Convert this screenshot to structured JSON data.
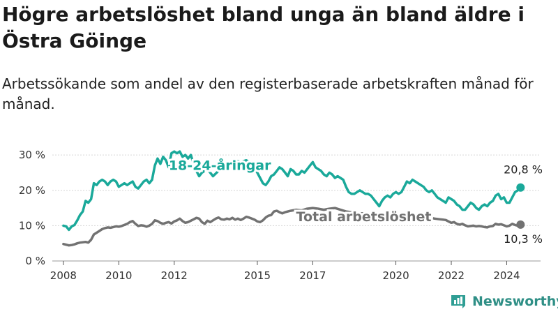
{
  "title": "Högre arbetslöshet bland unga än bland äldre i Östra Göinge",
  "subtitle": "Arbetssökande som andel av den registerbaserade arbetskraften månad för månad.",
  "brand": {
    "name": "Newsworthy",
    "icon": "bar-chart-logo-icon",
    "color": "#2f9e94"
  },
  "chart_data": {
    "type": "line",
    "ylim": [
      0,
      32
    ],
    "xlim": [
      2007.6,
      2025.6
    ],
    "yticks": [
      0,
      10,
      20,
      30
    ],
    "ytick_labels": [
      "0 %",
      "10 %",
      "20 %",
      "30 %"
    ],
    "xticks": [
      2008,
      2010,
      2012,
      2015,
      2017,
      2020,
      2022,
      2024
    ],
    "xtick_labels": [
      "2008",
      "2010",
      "2012",
      "2015",
      "2017",
      "2020",
      "2022",
      "2024"
    ],
    "grid": true,
    "series": [
      {
        "name": "18-24-åringar",
        "color": "#1aa99a",
        "end_label": "20,8 %",
        "points": [
          [
            2008.0,
            10.0
          ],
          [
            2008.1,
            9.8
          ],
          [
            2008.2,
            8.8
          ],
          [
            2008.3,
            9.8
          ],
          [
            2008.4,
            10.2
          ],
          [
            2008.5,
            11.5
          ],
          [
            2008.6,
            13.0
          ],
          [
            2008.7,
            14.0
          ],
          [
            2008.8,
            17.0
          ],
          [
            2008.9,
            16.5
          ],
          [
            2009.0,
            17.5
          ],
          [
            2009.1,
            22.0
          ],
          [
            2009.2,
            21.5
          ],
          [
            2009.3,
            22.5
          ],
          [
            2009.4,
            23.0
          ],
          [
            2009.5,
            22.5
          ],
          [
            2009.6,
            21.5
          ],
          [
            2009.7,
            22.5
          ],
          [
            2009.8,
            23.0
          ],
          [
            2009.9,
            22.5
          ],
          [
            2010.0,
            21.0
          ],
          [
            2010.1,
            21.5
          ],
          [
            2010.2,
            22.0
          ],
          [
            2010.3,
            21.5
          ],
          [
            2010.4,
            22.0
          ],
          [
            2010.5,
            22.5
          ],
          [
            2010.6,
            21.0
          ],
          [
            2010.7,
            20.5
          ],
          [
            2010.8,
            21.5
          ],
          [
            2010.9,
            22.5
          ],
          [
            2011.0,
            23.0
          ],
          [
            2011.1,
            22.0
          ],
          [
            2011.2,
            23.0
          ],
          [
            2011.3,
            27.0
          ],
          [
            2011.4,
            29.0
          ],
          [
            2011.5,
            27.5
          ],
          [
            2011.6,
            29.5
          ],
          [
            2011.7,
            28.5
          ],
          [
            2011.8,
            26.5
          ],
          [
            2011.9,
            30.5
          ],
          [
            2012.0,
            31.0
          ],
          [
            2012.1,
            30.5
          ],
          [
            2012.2,
            31.0
          ],
          [
            2012.3,
            29.5
          ],
          [
            2012.4,
            30.0
          ],
          [
            2012.5,
            29.0
          ],
          [
            2012.6,
            30.0
          ],
          [
            2012.7,
            27.5
          ],
          [
            2012.8,
            25.5
          ],
          [
            2012.9,
            24.0
          ],
          [
            2013.0,
            25.0
          ],
          [
            2013.2,
            26.0
          ],
          [
            2013.4,
            24.0
          ],
          [
            2013.6,
            25.5
          ],
          [
            2013.8,
            26.5
          ],
          [
            2014.0,
            27.0
          ],
          [
            2014.2,
            28.5
          ],
          [
            2014.4,
            28.0
          ],
          [
            2014.6,
            28.5
          ],
          [
            2014.8,
            27.5
          ],
          [
            2015.0,
            25.0
          ],
          [
            2015.1,
            23.5
          ],
          [
            2015.2,
            22.0
          ],
          [
            2015.3,
            21.5
          ],
          [
            2015.4,
            22.5
          ],
          [
            2015.5,
            24.0
          ],
          [
            2015.6,
            24.5
          ],
          [
            2015.7,
            25.5
          ],
          [
            2015.8,
            26.5
          ],
          [
            2015.9,
            26.0
          ],
          [
            2016.0,
            25.0
          ],
          [
            2016.1,
            24.0
          ],
          [
            2016.2,
            26.0
          ],
          [
            2016.3,
            25.5
          ],
          [
            2016.4,
            24.5
          ],
          [
            2016.5,
            24.5
          ],
          [
            2016.6,
            25.5
          ],
          [
            2016.7,
            25.0
          ],
          [
            2016.8,
            26.0
          ],
          [
            2016.9,
            27.0
          ],
          [
            2017.0,
            28.0
          ],
          [
            2017.1,
            26.5
          ],
          [
            2017.2,
            26.0
          ],
          [
            2017.3,
            25.5
          ],
          [
            2017.4,
            24.5
          ],
          [
            2017.5,
            24.0
          ],
          [
            2017.6,
            25.0
          ],
          [
            2017.7,
            24.5
          ],
          [
            2017.8,
            23.5
          ],
          [
            2017.9,
            24.0
          ],
          [
            2018.0,
            23.5
          ],
          [
            2018.1,
            23.0
          ],
          [
            2018.2,
            21.0
          ],
          [
            2018.3,
            19.5
          ],
          [
            2018.4,
            19.0
          ],
          [
            2018.5,
            19.0
          ],
          [
            2018.6,
            19.5
          ],
          [
            2018.7,
            20.0
          ],
          [
            2018.8,
            19.5
          ],
          [
            2018.9,
            19.0
          ],
          [
            2019.0,
            19.0
          ],
          [
            2019.1,
            18.5
          ],
          [
            2019.2,
            17.5
          ],
          [
            2019.3,
            16.5
          ],
          [
            2019.4,
            15.5
          ],
          [
            2019.5,
            17.0
          ],
          [
            2019.6,
            18.0
          ],
          [
            2019.7,
            18.5
          ],
          [
            2019.8,
            18.0
          ],
          [
            2019.9,
            19.0
          ],
          [
            2020.0,
            19.5
          ],
          [
            2020.1,
            19.0
          ],
          [
            2020.2,
            19.5
          ],
          [
            2020.3,
            21.0
          ],
          [
            2020.4,
            22.5
          ],
          [
            2020.5,
            22.0
          ],
          [
            2020.6,
            23.0
          ],
          [
            2020.7,
            22.5
          ],
          [
            2020.8,
            22.0
          ],
          [
            2020.9,
            21.5
          ],
          [
            2021.0,
            21.0
          ],
          [
            2021.1,
            20.0
          ],
          [
            2021.2,
            19.5
          ],
          [
            2021.3,
            20.0
          ],
          [
            2021.4,
            19.0
          ],
          [
            2021.5,
            18.0
          ],
          [
            2021.6,
            17.5
          ],
          [
            2021.7,
            17.0
          ],
          [
            2021.8,
            16.5
          ],
          [
            2021.9,
            18.0
          ],
          [
            2022.0,
            17.5
          ],
          [
            2022.1,
            17.0
          ],
          [
            2022.2,
            16.0
          ],
          [
            2022.3,
            15.5
          ],
          [
            2022.4,
            14.5
          ],
          [
            2022.5,
            14.5
          ],
          [
            2022.6,
            15.5
          ],
          [
            2022.7,
            16.5
          ],
          [
            2022.8,
            16.0
          ],
          [
            2022.9,
            15.0
          ],
          [
            2023.0,
            14.5
          ],
          [
            2023.1,
            15.5
          ],
          [
            2023.2,
            16.0
          ],
          [
            2023.3,
            15.5
          ],
          [
            2023.4,
            16.5
          ],
          [
            2023.5,
            17.0
          ],
          [
            2023.6,
            18.5
          ],
          [
            2023.7,
            19.0
          ],
          [
            2023.8,
            17.5
          ],
          [
            2023.9,
            18.0
          ],
          [
            2024.0,
            16.5
          ],
          [
            2024.1,
            16.5
          ],
          [
            2024.2,
            18.0
          ],
          [
            2024.3,
            19.5
          ],
          [
            2024.4,
            20.0
          ],
          [
            2024.5,
            20.8
          ]
        ]
      },
      {
        "name": "Total arbetslöshet",
        "color": "#727272",
        "end_label": "10,3 %",
        "points": [
          [
            2008.0,
            4.8
          ],
          [
            2008.1,
            4.6
          ],
          [
            2008.2,
            4.4
          ],
          [
            2008.3,
            4.5
          ],
          [
            2008.4,
            4.7
          ],
          [
            2008.5,
            5.0
          ],
          [
            2008.6,
            5.2
          ],
          [
            2008.7,
            5.3
          ],
          [
            2008.8,
            5.4
          ],
          [
            2008.9,
            5.2
          ],
          [
            2009.0,
            6.0
          ],
          [
            2009.1,
            7.5
          ],
          [
            2009.2,
            8.0
          ],
          [
            2009.3,
            8.5
          ],
          [
            2009.4,
            9.0
          ],
          [
            2009.5,
            9.3
          ],
          [
            2009.6,
            9.5
          ],
          [
            2009.7,
            9.4
          ],
          [
            2009.8,
            9.6
          ],
          [
            2009.9,
            9.8
          ],
          [
            2010.0,
            9.7
          ],
          [
            2010.1,
            9.9
          ],
          [
            2010.2,
            10.2
          ],
          [
            2010.3,
            10.5
          ],
          [
            2010.4,
            11.0
          ],
          [
            2010.5,
            11.3
          ],
          [
            2010.6,
            10.5
          ],
          [
            2010.7,
            9.9
          ],
          [
            2010.8,
            10.1
          ],
          [
            2010.9,
            10.0
          ],
          [
            2011.0,
            9.7
          ],
          [
            2011.1,
            10.0
          ],
          [
            2011.2,
            10.5
          ],
          [
            2011.3,
            11.5
          ],
          [
            2011.4,
            11.3
          ],
          [
            2011.5,
            10.8
          ],
          [
            2011.6,
            10.5
          ],
          [
            2011.7,
            10.8
          ],
          [
            2011.8,
            11.0
          ],
          [
            2011.9,
            10.6
          ],
          [
            2012.0,
            11.2
          ],
          [
            2012.1,
            11.5
          ],
          [
            2012.2,
            12.0
          ],
          [
            2012.3,
            11.3
          ],
          [
            2012.4,
            10.8
          ],
          [
            2012.5,
            11.0
          ],
          [
            2012.6,
            11.4
          ],
          [
            2012.7,
            11.8
          ],
          [
            2012.8,
            12.2
          ],
          [
            2012.9,
            12.0
          ],
          [
            2013.0,
            11.0
          ],
          [
            2013.1,
            10.5
          ],
          [
            2013.2,
            11.4
          ],
          [
            2013.3,
            11.0
          ],
          [
            2013.4,
            11.5
          ],
          [
            2013.5,
            12.0
          ],
          [
            2013.6,
            12.3
          ],
          [
            2013.7,
            11.8
          ],
          [
            2013.8,
            11.7
          ],
          [
            2013.9,
            12.0
          ],
          [
            2014.0,
            11.8
          ],
          [
            2014.1,
            12.2
          ],
          [
            2014.2,
            11.7
          ],
          [
            2014.3,
            12.0
          ],
          [
            2014.4,
            11.6
          ],
          [
            2014.5,
            12.0
          ],
          [
            2014.6,
            12.5
          ],
          [
            2014.7,
            12.3
          ],
          [
            2014.8,
            12.0
          ],
          [
            2014.9,
            11.7
          ],
          [
            2015.0,
            11.2
          ],
          [
            2015.1,
            11.0
          ],
          [
            2015.2,
            11.5
          ],
          [
            2015.3,
            12.3
          ],
          [
            2015.4,
            12.8
          ],
          [
            2015.5,
            13.0
          ],
          [
            2015.6,
            14.0
          ],
          [
            2015.7,
            14.2
          ],
          [
            2015.8,
            13.8
          ],
          [
            2015.9,
            13.5
          ],
          [
            2016.0,
            13.8
          ],
          [
            2016.2,
            14.2
          ],
          [
            2016.4,
            14.5
          ],
          [
            2016.6,
            14.3
          ],
          [
            2016.8,
            14.8
          ],
          [
            2017.0,
            15.0
          ],
          [
            2017.2,
            14.8
          ],
          [
            2017.4,
            14.5
          ],
          [
            2017.6,
            14.8
          ],
          [
            2017.8,
            15.0
          ],
          [
            2018.0,
            14.5
          ],
          [
            2018.2,
            14.0
          ],
          [
            2018.4,
            13.8
          ],
          [
            2018.6,
            13.5
          ],
          [
            2018.8,
            13.5
          ],
          [
            2019.0,
            13.2
          ],
          [
            2019.2,
            13.0
          ],
          [
            2019.4,
            12.8
          ],
          [
            2019.6,
            12.8
          ],
          [
            2019.8,
            12.6
          ],
          [
            2020.0,
            12.5
          ],
          [
            2020.2,
            12.6
          ],
          [
            2020.4,
            12.8
          ],
          [
            2020.6,
            12.8
          ],
          [
            2020.8,
            12.6
          ],
          [
            2021.0,
            12.5
          ],
          [
            2021.2,
            12.3
          ],
          [
            2021.4,
            12.0
          ],
          [
            2021.6,
            11.8
          ],
          [
            2021.8,
            11.6
          ],
          [
            2021.9,
            11.2
          ],
          [
            2022.0,
            10.8
          ],
          [
            2022.1,
            11.0
          ],
          [
            2022.2,
            10.5
          ],
          [
            2022.3,
            10.3
          ],
          [
            2022.4,
            10.5
          ],
          [
            2022.5,
            10.1
          ],
          [
            2022.6,
            9.8
          ],
          [
            2022.7,
            9.9
          ],
          [
            2022.8,
            10.0
          ],
          [
            2022.9,
            9.8
          ],
          [
            2023.0,
            9.9
          ],
          [
            2023.1,
            9.8
          ],
          [
            2023.2,
            9.6
          ],
          [
            2023.3,
            9.5
          ],
          [
            2023.4,
            9.8
          ],
          [
            2023.5,
            9.9
          ],
          [
            2023.6,
            10.5
          ],
          [
            2023.7,
            10.3
          ],
          [
            2023.8,
            10.4
          ],
          [
            2023.9,
            10.1
          ],
          [
            2024.0,
            9.8
          ],
          [
            2024.1,
            10.0
          ],
          [
            2024.2,
            10.5
          ],
          [
            2024.3,
            10.2
          ],
          [
            2024.4,
            10.0
          ],
          [
            2024.5,
            10.3
          ]
        ]
      }
    ]
  }
}
